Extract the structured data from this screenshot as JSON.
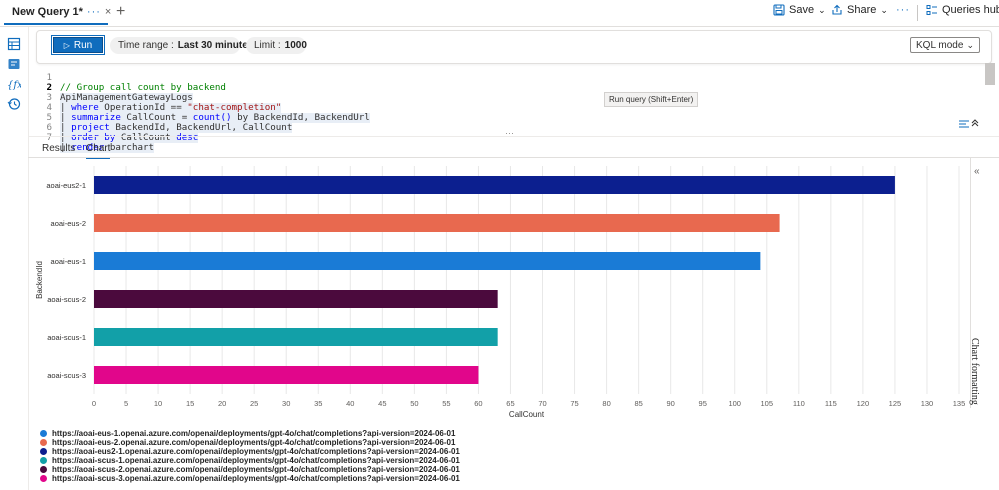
{
  "topbar": {
    "tab_title": "New Query 1*",
    "tab_more": "···",
    "tab_close": "×",
    "new_tab": "+",
    "save_label": "Save",
    "share_label": "Share",
    "more": "···",
    "queries_hub_label": "Queries hub"
  },
  "toolbar": {
    "run_label": "Run",
    "time_range_label": "Time range :",
    "time_range_value": "Last 30 minutes",
    "limit_label": "Limit :",
    "limit_value": "1000",
    "mode_value": "KQL mode"
  },
  "editor": {
    "lines": [
      {
        "n": "1",
        "text": "// Group call count by backend"
      },
      {
        "n": "2",
        "text": "ApiManagementGatewayLogs"
      },
      {
        "n": "3",
        "pre": "| ",
        "kw": "where",
        "mid": " OperationId == ",
        "str": "\"chat-completion\""
      },
      {
        "n": "4",
        "pre": "| ",
        "kw": "summarize",
        "mid": " CallCount = ",
        "kw2": "count()",
        "post": " by BackendId, BackendUrl"
      },
      {
        "n": "5",
        "pre": "| ",
        "kw": "project",
        "mid": " BackendId, BackendUrl, CallCount"
      },
      {
        "n": "6",
        "pre": "| ",
        "kw": "order by",
        "mid": " CallCount ",
        "kw2": "desc"
      },
      {
        "n": "7",
        "pre": "| ",
        "kw": "render",
        "mid": " barchart"
      }
    ],
    "tooltip": "Run query (Shift+Enter)",
    "resize_grip": "···"
  },
  "result_tabs": [
    "Results",
    "Chart"
  ],
  "side_panel": {
    "label": "Chart formatting",
    "collapse": "«"
  },
  "chart_data": {
    "type": "bar",
    "orientation": "horizontal",
    "categories": [
      "aoai-eus2-1",
      "aoai-eus-2",
      "aoai-eus-1",
      "aoai-scus-2",
      "aoai-scus-1",
      "aoai-scus-3"
    ],
    "values": [
      125,
      107,
      104,
      63,
      63,
      60
    ],
    "colors": [
      "#0c1f8f",
      "#e8694f",
      "#1a7bd6",
      "#4b0a3d",
      "#12a0a8",
      "#e1068b"
    ],
    "xlabel": "CallCount",
    "ylabel": "BackendId",
    "xlim": [
      0,
      135
    ],
    "xticks": [
      0,
      5,
      10,
      15,
      20,
      25,
      30,
      35,
      40,
      45,
      50,
      55,
      60,
      65,
      70,
      75,
      80,
      85,
      90,
      95,
      100,
      105,
      110,
      115,
      120,
      125,
      130,
      135
    ],
    "grid": true,
    "legend": "bottom-left"
  },
  "legend": [
    {
      "label": "https://aoai-eus-1.openai.azure.com/openai/deployments/gpt-4o/chat/completions?api-version=2024-06-01",
      "color": "#1a7bd6"
    },
    {
      "label": "https://aoai-eus-2.openai.azure.com/openai/deployments/gpt-4o/chat/completions?api-version=2024-06-01",
      "color": "#e8694f"
    },
    {
      "label": "https://aoai-eus2-1.openai.azure.com/openai/deployments/gpt-4o/chat/completions?api-version=2024-06-01",
      "color": "#0c1f8f"
    },
    {
      "label": "https://aoai-scus-1.openai.azure.com/openai/deployments/gpt-4o/chat/completions?api-version=2024-06-01",
      "color": "#12a0a8"
    },
    {
      "label": "https://aoai-scus-2.openai.azure.com/openai/deployments/gpt-4o/chat/completions?api-version=2024-06-01",
      "color": "#4b0a3d"
    },
    {
      "label": "https://aoai-scus-3.openai.azure.com/openai/deployments/gpt-4o/chat/completions?api-version=2024-06-01",
      "color": "#e1068b"
    }
  ]
}
